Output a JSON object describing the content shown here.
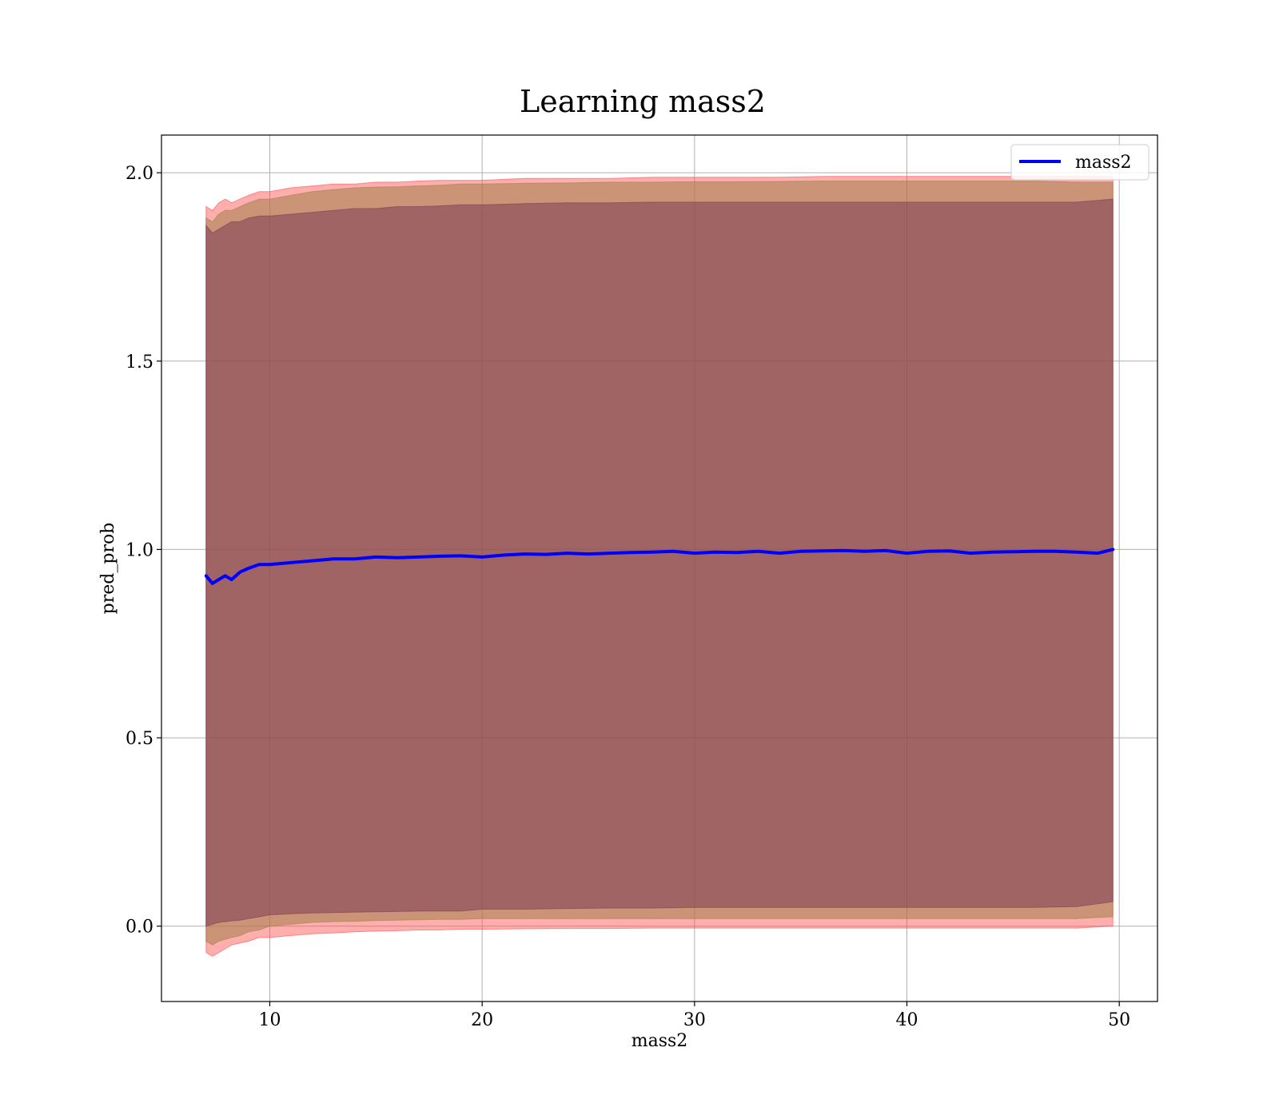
{
  "chart_data": {
    "type": "line",
    "title": "Learning mass2",
    "xlabel": "mass2",
    "ylabel": "pred_prob",
    "xlim": [
      4.9,
      51.8
    ],
    "ylim": [
      -0.2,
      2.1
    ],
    "grid": true,
    "legend_position": "top-right",
    "x_ticks": [
      10,
      20,
      30,
      40,
      50
    ],
    "y_ticks": [
      0.0,
      0.5,
      1.0,
      1.5,
      2.0
    ],
    "x_tick_labels": [
      "10",
      "20",
      "30",
      "40",
      "50"
    ],
    "y_tick_labels": [
      "0.0",
      "0.5",
      "1.0",
      "1.5",
      "2.0"
    ],
    "x_range": [
      7.0,
      49.7
    ],
    "series": [
      {
        "name": "mass2",
        "color": "#0000ff",
        "x": [
          7.0,
          7.3,
          7.6,
          7.9,
          8.2,
          8.6,
          9.0,
          9.5,
          10.0,
          11.0,
          12.0,
          13.0,
          14.0,
          15.0,
          16.0,
          17.0,
          18.0,
          19.0,
          20.0,
          21.0,
          22.0,
          23.0,
          24.0,
          25.0,
          26.0,
          27.0,
          28.0,
          29.0,
          30.0,
          31.0,
          32.0,
          33.0,
          34.0,
          35.0,
          36.0,
          37.0,
          38.0,
          39.0,
          40.0,
          41.0,
          42.0,
          43.0,
          44.0,
          45.0,
          46.0,
          47.0,
          48.0,
          49.0,
          49.7
        ],
        "values": [
          0.93,
          0.91,
          0.92,
          0.93,
          0.92,
          0.94,
          0.95,
          0.96,
          0.96,
          0.965,
          0.97,
          0.975,
          0.975,
          0.98,
          0.978,
          0.98,
          0.982,
          0.983,
          0.98,
          0.985,
          0.988,
          0.987,
          0.99,
          0.988,
          0.99,
          0.992,
          0.993,
          0.995,
          0.99,
          0.993,
          0.992,
          0.995,
          0.99,
          0.995,
          0.996,
          0.997,
          0.995,
          0.997,
          0.99,
          0.995,
          0.996,
          0.99,
          0.993,
          0.994,
          0.995,
          0.995,
          0.993,
          0.99,
          1.0
        ]
      }
    ],
    "bands": [
      {
        "color": "#ff4c4c",
        "opacity": 0.45,
        "x": [
          7.0,
          7.3,
          7.6,
          7.9,
          8.2,
          8.6,
          9.0,
          9.5,
          10.0,
          11.0,
          12.0,
          13.0,
          14.0,
          15.0,
          16.0,
          17.0,
          18.0,
          19.0,
          20.0,
          22.0,
          24.0,
          26.0,
          28.0,
          30.0,
          32.0,
          34.0,
          36.0,
          38.0,
          40.0,
          42.0,
          44.0,
          46.0,
          48.0,
          49.7
        ],
        "upper": [
          1.91,
          1.9,
          1.92,
          1.93,
          1.92,
          1.93,
          1.94,
          1.95,
          1.95,
          1.96,
          1.965,
          1.97,
          1.97,
          1.975,
          1.975,
          1.978,
          1.98,
          1.98,
          1.98,
          1.985,
          1.985,
          1.985,
          1.988,
          1.988,
          1.988,
          1.988,
          1.99,
          1.99,
          1.99,
          1.99,
          1.99,
          1.99,
          1.99,
          1.99
        ],
        "lower": [
          -0.07,
          -0.08,
          -0.07,
          -0.06,
          -0.05,
          -0.045,
          -0.04,
          -0.03,
          -0.03,
          -0.025,
          -0.02,
          -0.018,
          -0.015,
          -0.013,
          -0.012,
          -0.01,
          -0.01,
          -0.008,
          -0.008,
          -0.007,
          -0.006,
          -0.006,
          -0.005,
          -0.005,
          -0.005,
          -0.005,
          -0.005,
          -0.005,
          -0.005,
          -0.005,
          -0.005,
          -0.005,
          -0.005,
          0.0
        ]
      },
      {
        "color": "#a0804a",
        "opacity": 0.55,
        "x": [
          7.0,
          7.3,
          7.6,
          7.9,
          8.2,
          8.6,
          9.0,
          9.5,
          10.0,
          11.0,
          12.0,
          13.0,
          14.0,
          15.0,
          16.0,
          17.0,
          18.0,
          19.0,
          20.0,
          22.0,
          24.0,
          26.0,
          28.0,
          30.0,
          32.0,
          34.0,
          36.0,
          38.0,
          40.0,
          42.0,
          44.0,
          46.0,
          48.0,
          49.7
        ],
        "upper": [
          1.88,
          1.87,
          1.89,
          1.9,
          1.9,
          1.91,
          1.92,
          1.93,
          1.93,
          1.94,
          1.95,
          1.955,
          1.96,
          1.962,
          1.963,
          1.965,
          1.967,
          1.97,
          1.97,
          1.972,
          1.973,
          1.975,
          1.975,
          1.976,
          1.976,
          1.977,
          1.978,
          1.978,
          1.978,
          1.978,
          1.978,
          1.978,
          1.975,
          1.975
        ],
        "lower": [
          -0.04,
          -0.05,
          -0.04,
          -0.035,
          -0.03,
          -0.025,
          -0.015,
          -0.01,
          0.0,
          0.005,
          0.01,
          0.012,
          0.013,
          0.015,
          0.016,
          0.017,
          0.018,
          0.018,
          0.02,
          0.02,
          0.02,
          0.02,
          0.02,
          0.02,
          0.02,
          0.02,
          0.02,
          0.02,
          0.02,
          0.02,
          0.02,
          0.02,
          0.02,
          0.025
        ]
      },
      {
        "color": "#7d3d55",
        "opacity": 0.55,
        "x": [
          7.0,
          7.3,
          7.6,
          7.9,
          8.2,
          8.6,
          9.0,
          9.5,
          10.0,
          11.0,
          12.0,
          13.0,
          14.0,
          15.0,
          16.0,
          17.0,
          18.0,
          19.0,
          20.0,
          22.0,
          24.0,
          26.0,
          28.0,
          30.0,
          32.0,
          34.0,
          36.0,
          38.0,
          40.0,
          42.0,
          44.0,
          46.0,
          48.0,
          49.7
        ],
        "upper": [
          1.86,
          1.84,
          1.85,
          1.86,
          1.87,
          1.87,
          1.88,
          1.885,
          1.885,
          1.89,
          1.895,
          1.9,
          1.905,
          1.905,
          1.91,
          1.91,
          1.912,
          1.915,
          1.915,
          1.918,
          1.92,
          1.92,
          1.922,
          1.922,
          1.922,
          1.922,
          1.922,
          1.922,
          1.922,
          1.922,
          1.922,
          1.922,
          1.922,
          1.93
        ],
        "lower": [
          0.0,
          0.005,
          0.01,
          0.012,
          0.014,
          0.016,
          0.02,
          0.025,
          0.03,
          0.033,
          0.035,
          0.036,
          0.037,
          0.038,
          0.039,
          0.04,
          0.04,
          0.04,
          0.045,
          0.045,
          0.047,
          0.048,
          0.048,
          0.05,
          0.05,
          0.05,
          0.05,
          0.05,
          0.05,
          0.05,
          0.05,
          0.05,
          0.052,
          0.065
        ]
      }
    ]
  }
}
